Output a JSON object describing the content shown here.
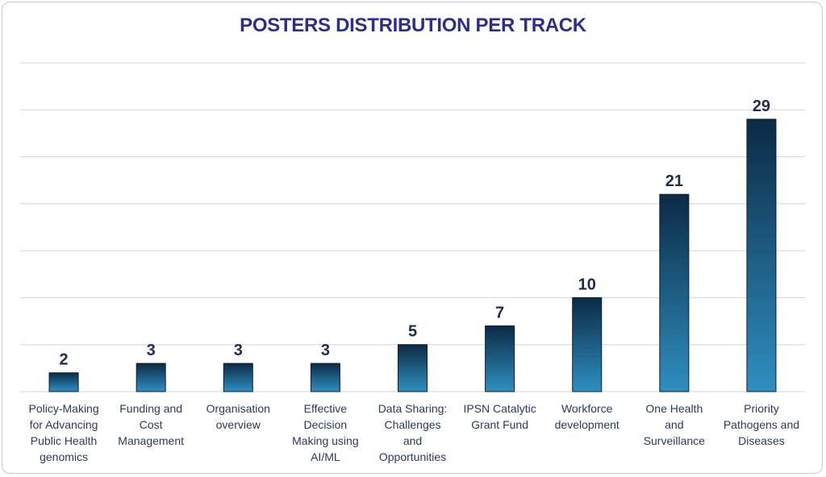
{
  "chart_data": {
    "type": "bar",
    "title": "POSTERS DISTRIBUTION PER TRACK",
    "categories": [
      [
        "Policy-Making",
        "for Advancing",
        "Public Health",
        "genomics"
      ],
      [
        "Funding and",
        "Cost",
        "Management"
      ],
      [
        "Organisation",
        "overview"
      ],
      [
        "Effective",
        "Decision",
        "Making using",
        "AI/ML"
      ],
      [
        "Data Sharing:",
        "Challenges",
        "and",
        "Opportunities"
      ],
      [
        "IPSN Catalytic",
        "Grant Fund"
      ],
      [
        "Workforce",
        "development"
      ],
      [
        "One Health",
        "and",
        "Surveillance"
      ],
      [
        "Priority",
        "Pathogens and",
        "Diseases"
      ]
    ],
    "values": [
      2,
      3,
      3,
      3,
      5,
      7,
      10,
      21,
      29
    ],
    "ylim": [
      0,
      35
    ],
    "gridline_step": 5,
    "grid": true,
    "legend": "none",
    "colors": {
      "bar_top": "#0b2a45",
      "bar_bottom": "#2f8fc0",
      "grid": "#d4cfee",
      "title": "#2e2d8f",
      "value_label": "#1f2d4d"
    }
  }
}
